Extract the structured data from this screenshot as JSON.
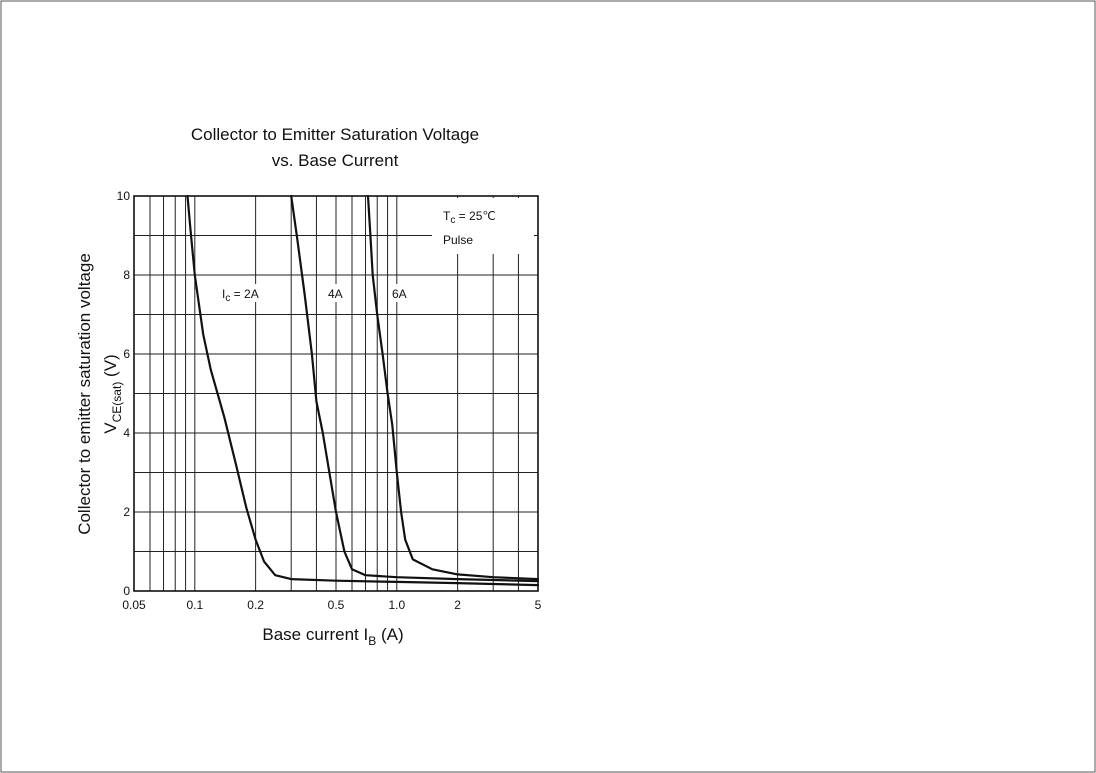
{
  "chart_data": {
    "type": "line",
    "title": [
      "Collector to Emitter Saturation Voltage",
      "vs. Base Current"
    ],
    "xlabel": {
      "text": "Base current  I",
      "sub": "B",
      "unit": " (A)"
    },
    "ylabel": {
      "line1": "Collector to emitter saturation voltage",
      "line2_main": "V",
      "line2_sub": "CE(sat)",
      "line2_unit": " (V)"
    },
    "x_scale": "log",
    "xlim": [
      0.05,
      5
    ],
    "ylim": [
      0,
      10
    ],
    "grid": true,
    "x_ticks": [
      0.05,
      0.1,
      0.2,
      0.5,
      1.0,
      2,
      5
    ],
    "x_tick_labels": [
      "0.05",
      "0.1",
      "0.2",
      "0.5",
      "1.0",
      "2",
      "5"
    ],
    "y_ticks": [
      0,
      2,
      4,
      6,
      8,
      10
    ],
    "y_tick_labels": [
      "0",
      "2",
      "4",
      "6",
      "8",
      "10"
    ],
    "conditions": {
      "line1_main": "T",
      "line1_sub": "c",
      "line1_rest": " = 25℃",
      "line2": "Pulse"
    },
    "series": [
      {
        "name": "",
        "label_main": "I",
        "label_sub": "c",
        "label_rest": " = 2A",
        "x": [
          0.092,
          0.095,
          0.1,
          0.11,
          0.12,
          0.14,
          0.16,
          0.18,
          0.2,
          0.22,
          0.25,
          0.3,
          0.5,
          1.0,
          2,
          5
        ],
        "y": [
          10,
          9.2,
          8.0,
          6.5,
          5.6,
          4.4,
          3.2,
          2.1,
          1.3,
          0.75,
          0.4,
          0.3,
          0.26,
          0.23,
          0.2,
          0.15
        ]
      },
      {
        "name": "",
        "label_main": "4A",
        "x": [
          0.3,
          0.32,
          0.35,
          0.38,
          0.4,
          0.43,
          0.46,
          0.5,
          0.55,
          0.6,
          0.7,
          1.0,
          2,
          5
        ],
        "y": [
          10,
          9.0,
          7.5,
          6.0,
          4.8,
          4.0,
          3.1,
          2.0,
          1.0,
          0.55,
          0.4,
          0.35,
          0.3,
          0.25
        ]
      },
      {
        "name": "",
        "label_main": "6A",
        "x": [
          0.72,
          0.74,
          0.76,
          0.8,
          0.85,
          0.9,
          0.95,
          1.0,
          1.05,
          1.1,
          1.2,
          1.5,
          2,
          3,
          5
        ],
        "y": [
          10,
          9.0,
          8.0,
          7.0,
          6.0,
          5.0,
          4.2,
          3.0,
          2.0,
          1.3,
          0.8,
          0.55,
          0.42,
          0.35,
          0.3
        ]
      }
    ]
  }
}
